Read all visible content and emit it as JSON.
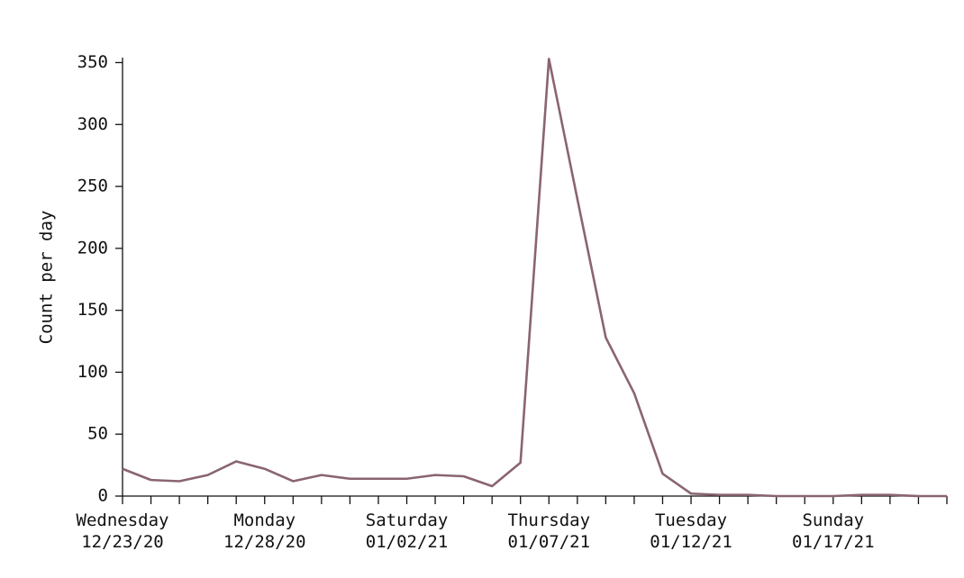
{
  "chart_data": {
    "type": "line",
    "y_label": "Count per day",
    "categories": [
      "12/23/20",
      null,
      null,
      null,
      null,
      "12/28/20",
      null,
      null,
      null,
      null,
      "01/02/21",
      null,
      null,
      null,
      null,
      "01/07/21",
      null,
      null,
      null,
      null,
      "01/12/21",
      null,
      null,
      null,
      null,
      "01/17/21",
      null,
      null,
      null,
      null
    ],
    "category_weekdays": [
      "Wednesday",
      null,
      null,
      null,
      null,
      "Monday",
      null,
      null,
      null,
      null,
      "Saturday",
      null,
      null,
      null,
      null,
      "Thursday",
      null,
      null,
      null,
      null,
      "Tuesday",
      null,
      null,
      null,
      null,
      "Sunday",
      null,
      null,
      null,
      null
    ],
    "values": [
      22,
      13,
      12,
      17,
      28,
      22,
      12,
      17,
      14,
      14,
      14,
      17,
      16,
      8,
      27,
      353,
      240,
      128,
      83,
      18,
      2,
      1,
      1,
      0,
      0,
      0,
      1,
      1,
      0,
      0
    ],
    "color": "#8a6472",
    "ylim": [
      0,
      354
    ],
    "yticks": [
      0,
      50,
      100,
      150,
      200,
      250,
      300,
      350
    ]
  }
}
